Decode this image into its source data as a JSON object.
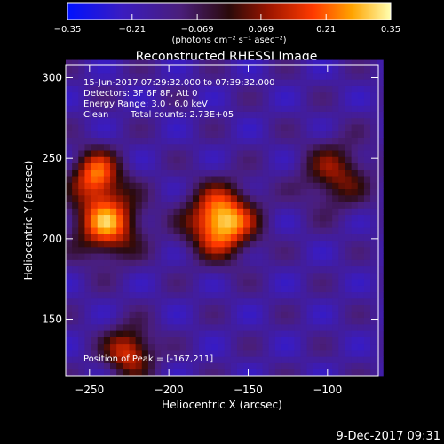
{
  "chart_data": {
    "type": "heatmap",
    "title": "Reconstructed RHESSI Image",
    "xlabel": "Heliocentric X (arcsec)",
    "ylabel": "Heliocentric Y (arcsec)",
    "xlim": [
      -265,
      -68
    ],
    "ylim": [
      115,
      308
    ],
    "x_ticks": [
      -250,
      -200,
      -150,
      -100
    ],
    "y_ticks": [
      150,
      200,
      250,
      300
    ],
    "colorbar": {
      "min": -0.35,
      "max": 0.35,
      "ticks": [
        "-0.35",
        "-0.21",
        "-0.069",
        "0.069",
        "0.21",
        "0.35"
      ],
      "unit_label": "(photons cm⁻² s⁻¹ asec⁻²)"
    },
    "sources": [
      {
        "x": -167,
        "y": 211,
        "r": 20,
        "value": 0.35
      },
      {
        "x": -239,
        "y": 210,
        "r": 20,
        "value": 0.25
      },
      {
        "x": -246,
        "y": 240,
        "r": 15,
        "value": 0.19
      },
      {
        "x": -225,
        "y": 130,
        "r": 15,
        "value": 0.16
      },
      {
        "x": -95,
        "y": 240,
        "r": 20,
        "value": 0.07
      }
    ],
    "annotations": {
      "time_range": "15-Jun-2017 07:29:32.000 to 07:39:32.000",
      "detectors": "Detectors: 3F 6F 8F, Att 0",
      "energy": "Energy Range: 3.0 - 6.0 keV",
      "method": "Clean",
      "counts": "Total counts: 2.73E+05",
      "peak": "Position of Peak = [-167,211]"
    }
  },
  "footer": {
    "date": "9-Dec-2017 09:31"
  }
}
